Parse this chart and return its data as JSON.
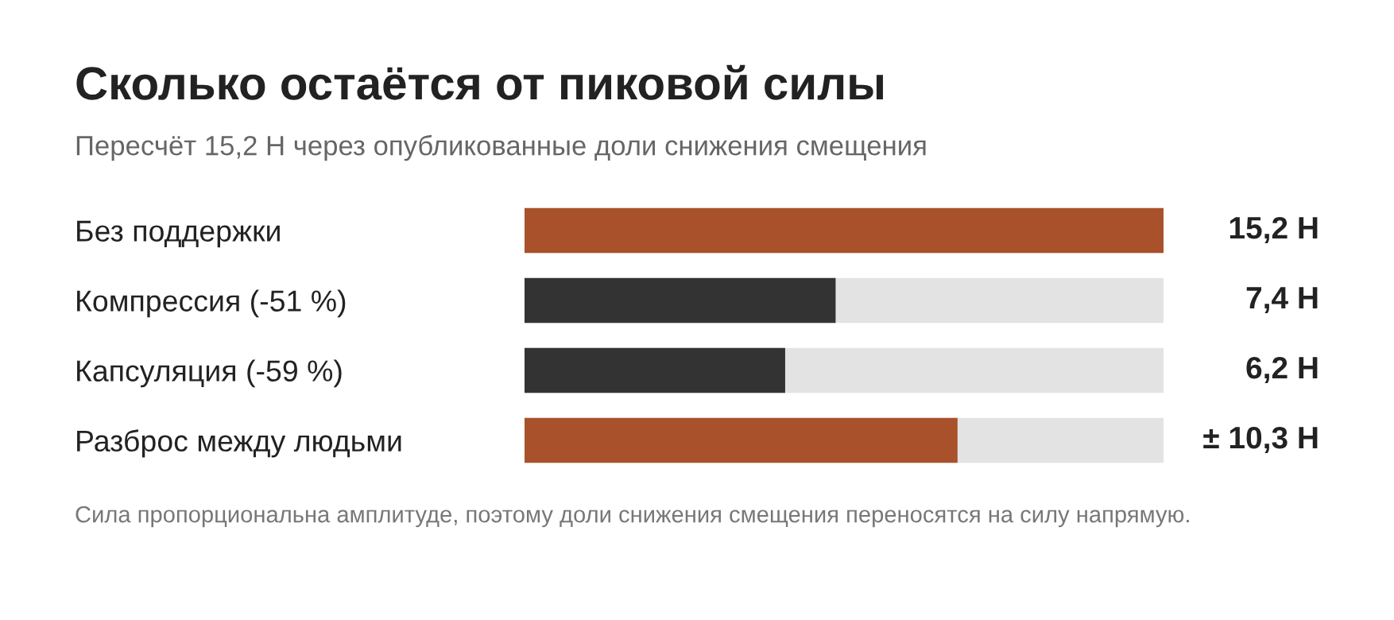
{
  "chart_data": {
    "type": "bar",
    "orientation": "horizontal",
    "title": "Сколько остаётся от пиковой силы",
    "subtitle": "Пересчёт 15,2 Н через опубликованные доли снижения смещения",
    "categories": [
      "Без поддержки",
      "Компрессия (-51 %)",
      "Капсуляция (-59 %)",
      "Разброс между людьми"
    ],
    "values": [
      15.2,
      7.4,
      6.2,
      10.3
    ],
    "colors": [
      "#a8512b",
      "#333333",
      "#333333",
      "#a8512b"
    ],
    "value_labels": [
      "15,2 Н",
      "7,4 Н",
      "6,2 Н",
      "± 10,3 Н"
    ],
    "xlim": [
      0,
      15.2
    ],
    "tick_labels": "y",
    "grid": false,
    "legend": false,
    "annotations": [
      "Сила пропорциональна амплитуде, поэтому доли снижения смещения переносятся на силу напрямую."
    ]
  }
}
